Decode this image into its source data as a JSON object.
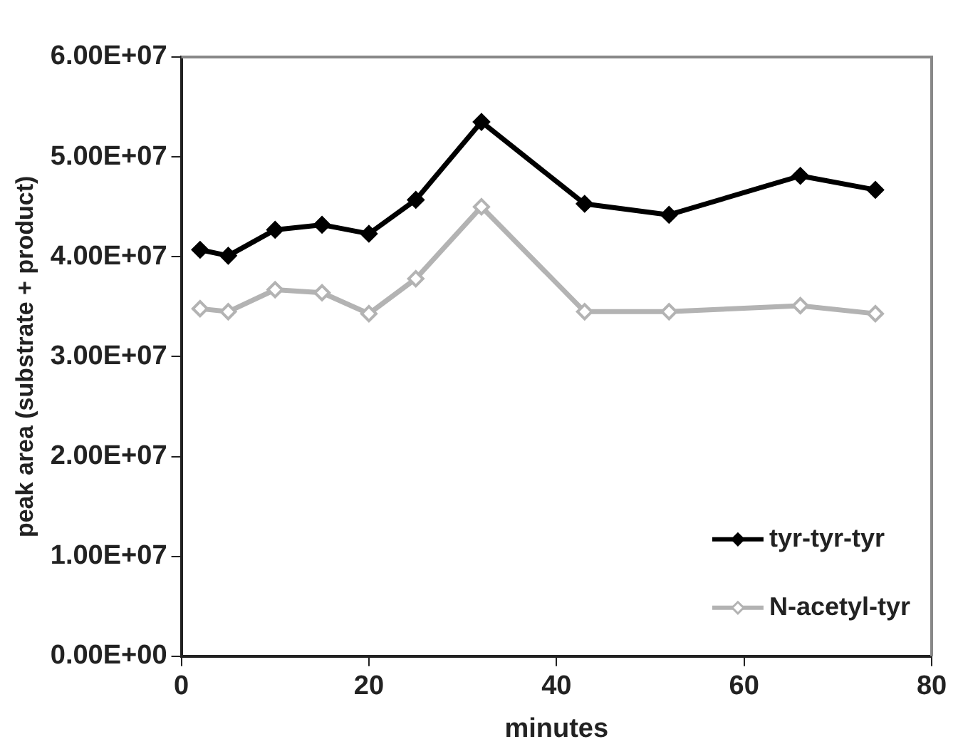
{
  "chart_data": {
    "type": "line",
    "xlabel": "minutes",
    "ylabel": "peak area (substrate + product)",
    "x": [
      2,
      5,
      10,
      15,
      20,
      25,
      32,
      43,
      52,
      66,
      74
    ],
    "series": [
      {
        "name": "tyr-tyr-tyr",
        "color": "#000000",
        "values": [
          40700000,
          40100000,
          42700000,
          43200000,
          42300000,
          45700000,
          53500000,
          45300000,
          44200000,
          48100000,
          46700000
        ]
      },
      {
        "name": "N-acetyl-tyr",
        "color": "#b3b3b3",
        "values": [
          34800000,
          34500000,
          36700000,
          36400000,
          34300000,
          37800000,
          45000000,
          34500000,
          34500000,
          35100000,
          34300000
        ]
      }
    ],
    "xlim": [
      0,
      80
    ],
    "xticks": [
      0,
      20,
      40,
      60,
      80
    ],
    "ylim": [
      0,
      60000000
    ],
    "yticks": [
      {
        "value": 0,
        "label": "0.00E+00"
      },
      {
        "value": 10000000,
        "label": "1.00E+07"
      },
      {
        "value": 20000000,
        "label": "2.00E+07"
      },
      {
        "value": 30000000,
        "label": "3.00E+07"
      },
      {
        "value": 40000000,
        "label": "4.00E+07"
      },
      {
        "value": 50000000,
        "label": "5.00E+07"
      },
      {
        "value": 60000000,
        "label": "6.00E+07"
      }
    ],
    "grid": false,
    "legend": "bottom right",
    "marker": "diamond",
    "line_style": "solid"
  }
}
